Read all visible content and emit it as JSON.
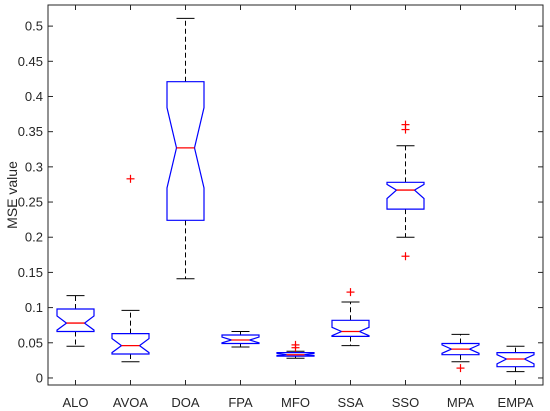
{
  "chart_data": {
    "type": "box",
    "title": "",
    "xlabel": "",
    "ylabel": "MSE value",
    "ylim": [
      -0.01,
      0.53
    ],
    "yticks": [
      0,
      0.05,
      0.1,
      0.15,
      0.2,
      0.25,
      0.3,
      0.35,
      0.4,
      0.45,
      0.5
    ],
    "ytick_labels": [
      "0",
      "0.05",
      "0.1",
      "0.15",
      "0.2",
      "0.25",
      "0.3",
      "0.35",
      "0.4",
      "0.45",
      "0.5"
    ],
    "notched": true,
    "grid": false,
    "colors": {
      "box": "#0000ff",
      "median": "#ff0000",
      "whisker": "#000000",
      "outlier": "#ff0000"
    },
    "categories": [
      "ALO",
      "AVOA",
      "DOA",
      "FPA",
      "MFO",
      "SSA",
      "SSO",
      "MPA",
      "EMPA"
    ],
    "boxes": [
      {
        "name": "ALO",
        "whislo": 0.045,
        "q1": 0.066,
        "med": 0.078,
        "q3": 0.098,
        "whishi": 0.117,
        "notch_lo": 0.068,
        "notch_hi": 0.088,
        "fliers": []
      },
      {
        "name": "AVOA",
        "whislo": 0.023,
        "q1": 0.034,
        "med": 0.046,
        "q3": 0.063,
        "whishi": 0.096,
        "notch_lo": 0.036,
        "notch_hi": 0.056,
        "fliers": [
          0.283
        ]
      },
      {
        "name": "DOA",
        "whislo": 0.141,
        "q1": 0.224,
        "med": 0.327,
        "q3": 0.421,
        "whishi": 0.511,
        "notch_lo": 0.27,
        "notch_hi": 0.384,
        "fliers": []
      },
      {
        "name": "FPA",
        "whislo": 0.044,
        "q1": 0.049,
        "med": 0.054,
        "q3": 0.061,
        "whishi": 0.066,
        "notch_lo": 0.05,
        "notch_hi": 0.058,
        "fliers": []
      },
      {
        "name": "MFO",
        "whislo": 0.028,
        "q1": 0.031,
        "med": 0.033,
        "q3": 0.036,
        "whishi": 0.038,
        "notch_lo": 0.032,
        "notch_hi": 0.035,
        "fliers": [
          0.043,
          0.047
        ]
      },
      {
        "name": "SSA",
        "whislo": 0.046,
        "q1": 0.059,
        "med": 0.066,
        "q3": 0.082,
        "whishi": 0.108,
        "notch_lo": 0.06,
        "notch_hi": 0.072,
        "fliers": [
          0.122
        ]
      },
      {
        "name": "SSO",
        "whislo": 0.2,
        "q1": 0.24,
        "med": 0.267,
        "q3": 0.278,
        "whishi": 0.33,
        "notch_lo": 0.255,
        "notch_hi": 0.275,
        "fliers": [
          0.173,
          0.353,
          0.36
        ]
      },
      {
        "name": "MPA",
        "whislo": 0.023,
        "q1": 0.033,
        "med": 0.041,
        "q3": 0.049,
        "whishi": 0.062,
        "notch_lo": 0.035,
        "notch_hi": 0.047,
        "fliers": [
          0.014
        ]
      },
      {
        "name": "EMPA",
        "whislo": 0.009,
        "q1": 0.016,
        "med": 0.027,
        "q3": 0.036,
        "whishi": 0.045,
        "notch_lo": 0.02,
        "notch_hi": 0.033,
        "fliers": []
      }
    ]
  }
}
